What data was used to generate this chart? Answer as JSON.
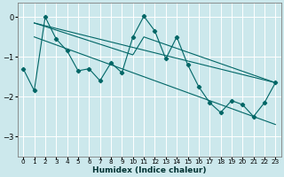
{
  "xlabel": "Humidex (Indice chaleur)",
  "bg_color": "#cce8ec",
  "line_color": "#006666",
  "grid_color": "#ffffff",
  "xlim": [
    -0.5,
    23.5
  ],
  "ylim": [
    -3.5,
    0.35
  ],
  "yticks": [
    0,
    -1,
    -2,
    -3
  ],
  "xticks": [
    0,
    1,
    2,
    3,
    4,
    5,
    6,
    7,
    8,
    9,
    10,
    11,
    12,
    13,
    14,
    15,
    16,
    17,
    18,
    19,
    20,
    21,
    22,
    23
  ],
  "series1_x": [
    0,
    1,
    2,
    3,
    4,
    5,
    6,
    7,
    8,
    9,
    10,
    11,
    12,
    13,
    14,
    15,
    16,
    17,
    18,
    19,
    20,
    21,
    22,
    23
  ],
  "series1_y": [
    -1.3,
    -1.85,
    0.0,
    -0.55,
    -0.85,
    -1.35,
    -1.3,
    -1.6,
    -1.15,
    -1.4,
    -0.5,
    0.02,
    -0.35,
    -1.05,
    -0.5,
    -1.2,
    -1.75,
    -2.15,
    -2.4,
    -2.1,
    -2.2,
    -2.5,
    -2.15,
    -1.65
  ],
  "line2_x": [
    1,
    23
  ],
  "line2_y": [
    -0.15,
    -1.65
  ],
  "line3_x": [
    1,
    10,
    11,
    23
  ],
  "line3_y": [
    -0.15,
    -0.95,
    -0.5,
    -1.65
  ],
  "line4_x": [
    1,
    23
  ],
  "line4_y": [
    -0.5,
    -2.7
  ]
}
